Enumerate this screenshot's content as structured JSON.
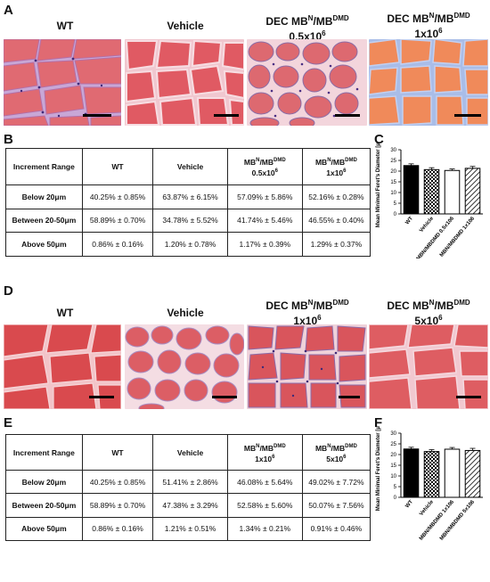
{
  "section1": {
    "letters": {
      "a": "A",
      "b": "B",
      "c": "C"
    },
    "titles": [
      {
        "main": "WT",
        "sup": "",
        "tail": "",
        "line2": ""
      },
      {
        "main": "Vehicle",
        "sup": "",
        "tail": "",
        "line2": ""
      },
      {
        "main": "DEC MB",
        "sup": "N",
        "tail": "/MB",
        "sup2": "DMD",
        "line2": "0.5x10",
        "line2sup": "6"
      },
      {
        "main": "DEC MB",
        "sup": "N",
        "tail": "/MB",
        "sup2": "DMD",
        "line2": "1x10",
        "line2sup": "6"
      }
    ],
    "table": {
      "headers": [
        "Increment Range",
        "WT",
        "Vehicle",
        "MBN/MBDMD 0.5x106",
        "MBN/MBDMD 1x106"
      ],
      "h3": {
        "a": "MB",
        "b": "N",
        "c": "/MB",
        "d": "DMD",
        "e": "0.5x10",
        "f": "6"
      },
      "h4": {
        "a": "MB",
        "b": "N",
        "c": "/MB",
        "d": "DMD",
        "e": "1x10",
        "f": "6"
      },
      "rows": [
        [
          "Below 20μm",
          "40.25% ± 0.85%",
          "63.87% ± 6.15%",
          "57.09% ± 5.86%",
          "52.16% ± 0.28%"
        ],
        [
          "Between 20-50μm",
          "58.89% ± 0.70%",
          "34.78% ± 5.52%",
          "41.74% ± 5.46%",
          "46.55% ± 0.40%"
        ],
        [
          "Above 50μm",
          "0.86% ± 0.16%",
          "1.20% ± 0.78%",
          "1.17% ± 0.39%",
          "1.29% ± 0.37%"
        ]
      ]
    }
  },
  "section2": {
    "letters": {
      "d": "D",
      "e": "E",
      "f": "F"
    },
    "titles": [
      {
        "main": "WT",
        "sup": "",
        "tail": "",
        "line2": ""
      },
      {
        "main": "Vehicle",
        "sup": "",
        "tail": "",
        "line2": ""
      },
      {
        "main": "DEC MB",
        "sup": "N",
        "tail": "/MB",
        "sup2": "DMD",
        "line2": "1x10",
        "line2sup": "6"
      },
      {
        "main": "DEC MB",
        "sup": "N",
        "tail": "/MB",
        "sup2": "DMD",
        "line2": "5x10",
        "line2sup": "6"
      }
    ],
    "table": {
      "headers": [
        "Increment Range",
        "WT",
        "Vehicle",
        "MBN/MBDMD 1x106",
        "MBN/MBDMD 5x106"
      ],
      "h3": {
        "a": "MB",
        "b": "N",
        "c": "/MB",
        "d": "DMD",
        "e": "1x10",
        "f": "6"
      },
      "h4": {
        "a": "MB",
        "b": "N",
        "c": "/MB",
        "d": "DMD",
        "e": "5x10",
        "f": "6"
      },
      "rows": [
        [
          "Below 20μm",
          "40.25% ± 0.85%",
          "51.41% ± 2.86%",
          "46.08% ± 5.64%",
          "49.02% ± 7.72%"
        ],
        [
          "Between 20-50μm",
          "58.89% ± 0.70%",
          "47.38% ± 3.29%",
          "52.58% ± 5.60%",
          "50.07% ± 7.56%"
        ],
        [
          "Above 50μm",
          "0.86% ± 0.16%",
          "1.21% ± 0.51%",
          "1.34% ± 0.21%",
          "0.91% ± 0.46%"
        ]
      ]
    }
  },
  "chart_data": [
    {
      "type": "bar",
      "panel": "C",
      "ylabel": "Mean Minimal Feret's Diameter [μm]",
      "ylim": [
        0,
        30
      ],
      "yticks": [
        0,
        5,
        10,
        15,
        20,
        25,
        30
      ],
      "categories": [
        "WT",
        "Vehicle",
        "MBN/MBDMD 0.5x106",
        "MBN/MBDMD 1x106"
      ],
      "values": [
        22.6,
        20.7,
        20.3,
        21.3
      ],
      "errors": [
        0.8,
        0.9,
        0.7,
        0.9
      ],
      "fills": [
        "solid-black",
        "checker",
        "white",
        "hatched"
      ]
    },
    {
      "type": "bar",
      "panel": "F",
      "ylabel": "Mean Minimal Feret's Diameter [μm]",
      "ylim": [
        0,
        30
      ],
      "yticks": [
        0,
        5,
        10,
        15,
        20,
        25,
        30
      ],
      "categories": [
        "WT",
        "Vehicle",
        "MBN/MBDMD 1x106",
        "MBN/MBDMD 5x106"
      ],
      "values": [
        22.6,
        21.4,
        22.5,
        21.9
      ],
      "errors": [
        0.8,
        0.9,
        0.8,
        1.0
      ],
      "fills": [
        "solid-black",
        "checker",
        "white",
        "hatched"
      ]
    }
  ],
  "colors": {
    "tissue_pink": "#e8737a",
    "tissue_red": "#d9484c",
    "nuclei_purple": "#6a4c9c",
    "lilac_bg": "#c8a7d6",
    "blue_fibrosis": "#8fa8e0"
  }
}
